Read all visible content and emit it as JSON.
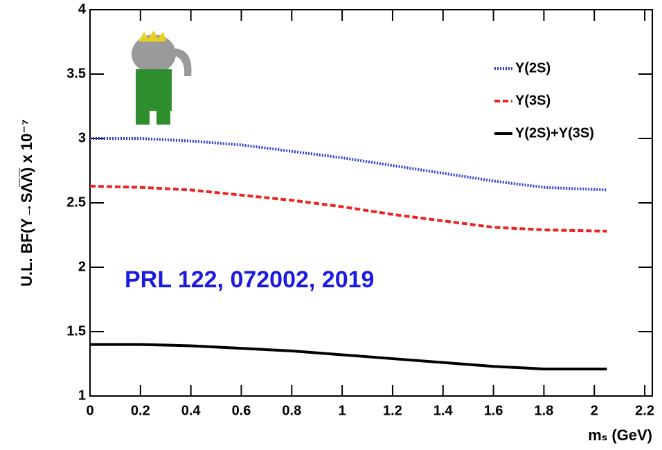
{
  "chart_data": {
    "type": "line",
    "y_label": "U.L.  BF(Υ→SΛ̅Λ̅) x 10⁻⁷",
    "x_label": "mₛ (GeV)",
    "annotation": "PRL 122, 072002, 2019",
    "x": [
      0,
      0.2,
      0.4,
      0.6,
      0.8,
      1.0,
      1.2,
      1.4,
      1.6,
      1.8,
      2.05
    ],
    "series": [
      {
        "name": "Υ(2S)",
        "color": "#2b3bd8",
        "dash": "dotted",
        "values": [
          3.0,
          3.0,
          2.98,
          2.95,
          2.9,
          2.85,
          2.79,
          2.73,
          2.67,
          2.62,
          2.6
        ]
      },
      {
        "name": "Υ(3S)",
        "color": "#ee2222",
        "dash": "dashed",
        "values": [
          2.63,
          2.62,
          2.6,
          2.56,
          2.52,
          2.47,
          2.41,
          2.36,
          2.31,
          2.29,
          2.28
        ]
      },
      {
        "name": "Υ(2S)+Υ(3S)",
        "color": "#000000",
        "dash": "solid",
        "values": [
          1.4,
          1.4,
          1.39,
          1.37,
          1.35,
          1.32,
          1.29,
          1.26,
          1.23,
          1.21,
          1.21
        ]
      }
    ],
    "xlim": [
      0,
      2.23
    ],
    "xticks": [
      0,
      0.2,
      0.4,
      0.6,
      0.8,
      1,
      1.2,
      1.4,
      1.6,
      1.8,
      2,
      2.2
    ],
    "ylim": [
      1,
      4
    ],
    "yticks": [
      1,
      1.5,
      2,
      2.5,
      3,
      3.5,
      4
    ],
    "legend": "top-right"
  }
}
